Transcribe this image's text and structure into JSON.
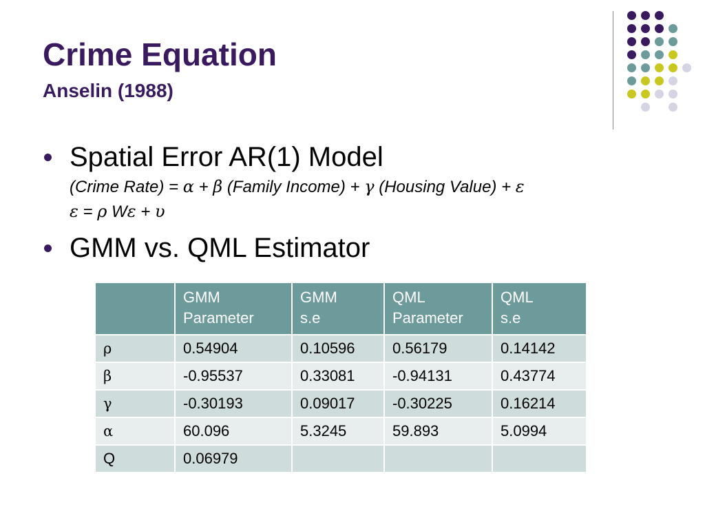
{
  "title": "Crime Equation",
  "subtitle": "Anselin (1988)",
  "bullets": [
    "Spatial Error AR(1) Model",
    "GMM vs. QML Estimator"
  ],
  "equation_1": {
    "p1": "(Crime Rate) = ",
    "alpha": "α",
    "p2": " + ",
    "beta": "β",
    "p3": " (Family Income) + ",
    "gamma": "γ",
    "p4": " (Housing Value) + ",
    "epsilon": "ε"
  },
  "equation_2": {
    "epsilon": "ε",
    "p1": " = ",
    "rho": "ρ",
    "p2": " W",
    "epsilon2": "ε",
    "p3": " + ",
    "upsilon": "υ"
  },
  "table": {
    "headers": [
      {
        "line1": "",
        "line2": ""
      },
      {
        "line1": "GMM",
        "line2": "Parameter"
      },
      {
        "line1": "GMM",
        "line2": "s.e"
      },
      {
        "line1": "QML",
        "line2": "Parameter"
      },
      {
        "line1": "QML",
        "line2": "s.e"
      }
    ],
    "rows": [
      {
        "label": "ρ",
        "cells": [
          "0.54904",
          "0.10596",
          "0.56179",
          "0.14142"
        ]
      },
      {
        "label": "β",
        "cells": [
          "-0.95537",
          "0.33081",
          "-0.94131",
          "0.43774"
        ]
      },
      {
        "label": "γ",
        "cells": [
          "-0.30193",
          "0.09017",
          "-0.30225",
          "0.16214"
        ]
      },
      {
        "label": "α",
        "cells": [
          "60.096",
          "5.3245",
          "59.893",
          "5.0994"
        ]
      },
      {
        "label": "Q",
        "cells": [
          "0.06979",
          "",
          "",
          ""
        ]
      }
    ]
  },
  "colors": {
    "title": "#3a1a5e",
    "header_bg": "#6d9a9a",
    "row_dark": "#cfdcdc",
    "row_light": "#e8eeee",
    "dot_purple": "#3a1a5e",
    "dot_teal": "#6d9a9a",
    "dot_yellow": "#c8c820",
    "dot_lavender": "#d4d4e4"
  }
}
